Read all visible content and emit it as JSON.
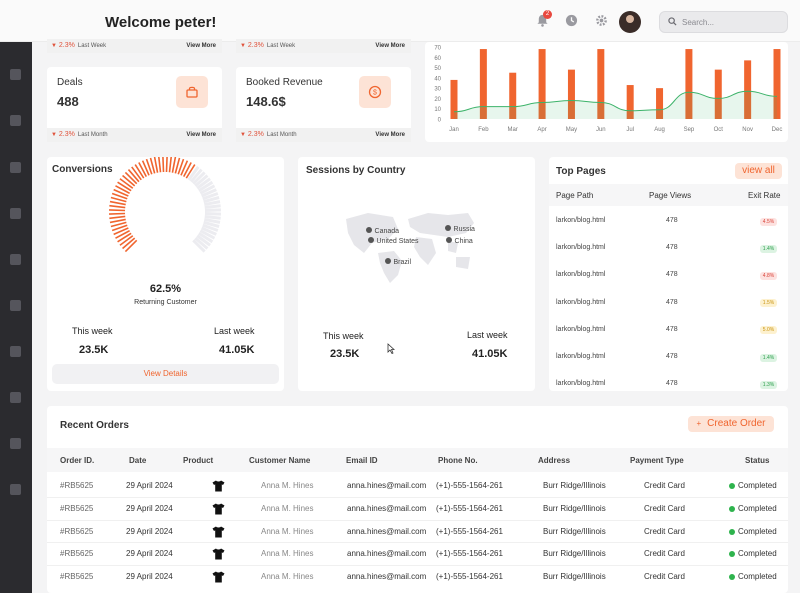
{
  "header": {
    "welcome": "Welcome peter!",
    "notification_count": "2",
    "search_placeholder": "Search..."
  },
  "stats": {
    "top_left": {
      "trend": "2.3%",
      "period": "Last Week",
      "view_more": "View More"
    },
    "top_right": {
      "trend": "2.3%",
      "period": "Last Week",
      "view_more": "View More"
    },
    "deals": {
      "title": "Deals",
      "value": "488",
      "trend": "2.3%",
      "period": "Last Month",
      "view_more": "View More"
    },
    "revenue": {
      "title": "Booked Revenue",
      "value": "148.6$",
      "trend": "2.3%",
      "period": "Last Month",
      "view_more": "View More"
    }
  },
  "chart_data": {
    "type": "bar",
    "categories": [
      "Jan",
      "Feb",
      "Mar",
      "Apr",
      "May",
      "Jun",
      "Jul",
      "Aug",
      "Sep",
      "Oct",
      "Nov",
      "Dec"
    ],
    "y_ticks": [
      "70",
      "60",
      "50",
      "40",
      "30",
      "20",
      "10",
      "0"
    ],
    "ylim": [
      0,
      70
    ],
    "series": [
      {
        "values": [
          38,
          68,
          45,
          68,
          48,
          68,
          33,
          30,
          68,
          48,
          57,
          68
        ],
        "color": "#f0652f"
      },
      {
        "values": [
          7,
          12,
          12,
          16,
          18,
          16,
          8,
          9,
          26,
          20,
          27,
          22
        ],
        "color": "#3db36a"
      }
    ]
  },
  "conversions": {
    "title": "Conversions",
    "percent": "62.5%",
    "gauge_fraction": 0.625,
    "caption": "Returning Customer",
    "this_week_label": "This week",
    "this_week_value": "23.5K",
    "last_week_label": "Last week",
    "last_week_value": "41.05K",
    "button": "View Details"
  },
  "sessions": {
    "title": "Sessions by Country",
    "countries": [
      "Canada",
      "United States",
      "Russia",
      "China",
      "Brazil"
    ],
    "this_week_label": "This week",
    "this_week_value": "23.5K",
    "last_week_label": "Last week",
    "last_week_value": "41.05K"
  },
  "top_pages": {
    "title": "Top Pages",
    "view_all": "view all",
    "headers": [
      "Page Path",
      "Page Views",
      "Exit Rate"
    ],
    "rows": [
      {
        "path": "larkon/blog.html",
        "views": "478",
        "rate": "4.5%",
        "tone": "red"
      },
      {
        "path": "larkon/blog.html",
        "views": "478",
        "rate": "1.4%",
        "tone": "green"
      },
      {
        "path": "larkon/blog.html",
        "views": "478",
        "rate": "4.8%",
        "tone": "red"
      },
      {
        "path": "larkon/blog.html",
        "views": "478",
        "rate": "1.5%",
        "tone": "yellow"
      },
      {
        "path": "larkon/blog.html",
        "views": "478",
        "rate": "5.0%",
        "tone": "yellow"
      },
      {
        "path": "larkon/blog.html",
        "views": "478",
        "rate": "1.4%",
        "tone": "green"
      },
      {
        "path": "larkon/blog.html",
        "views": "478",
        "rate": "1.3%",
        "tone": "green"
      }
    ]
  },
  "orders": {
    "title": "Recent Orders",
    "create_button": "Create Order",
    "create_plus": "+",
    "headers": [
      "Order ID.",
      "Date",
      "Product",
      "Customer Name",
      "Email ID",
      "Phone No.",
      "Address",
      "Payment Type",
      "Status"
    ],
    "rows": [
      {
        "id": "#RB5625",
        "date": "29 April 2024",
        "customer": "Anna M. Hines",
        "email": "anna.hines@mail.com",
        "phone": "(+1)-555-1564-261",
        "address": "Burr Ridge/Illinois",
        "payment": "Credit Card",
        "status": "Completed"
      },
      {
        "id": "#RB5625",
        "date": "29 April 2024",
        "customer": "Anna M. Hines",
        "email": "anna.hines@mail.com",
        "phone": "(+1)-555-1564-261",
        "address": "Burr Ridge/Illinois",
        "payment": "Credit Card",
        "status": "Completed"
      },
      {
        "id": "#RB5625",
        "date": "29 April 2024",
        "customer": "Anna M. Hines",
        "email": "anna.hines@mail.com",
        "phone": "(+1)-555-1564-261",
        "address": "Burr Ridge/Illinois",
        "payment": "Credit Card",
        "status": "Completed"
      },
      {
        "id": "#RB5625",
        "date": "29 April 2024",
        "customer": "Anna M. Hines",
        "email": "anna.hines@mail.com",
        "phone": "(+1)-555-1564-261",
        "address": "Burr Ridge/Illinois",
        "payment": "Credit Card",
        "status": "Completed"
      },
      {
        "id": "#RB5625",
        "date": "29 April 2024",
        "customer": "Anna M. Hines",
        "email": "anna.hines@mail.com",
        "phone": "(+1)-555-1564-261",
        "address": "Burr Ridge/Illinois",
        "payment": "Credit Card",
        "status": "Completed"
      }
    ]
  },
  "colors": {
    "accent": "#f0652f",
    "accent_soft": "#fde3d6",
    "success": "#2eb34d",
    "danger": "#e0533c"
  }
}
